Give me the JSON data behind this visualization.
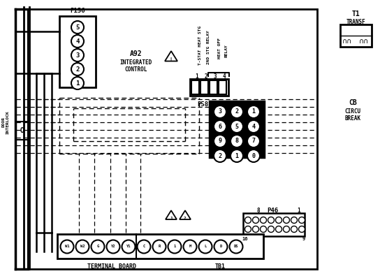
{
  "bg_color": "#ffffff",
  "lc": "#000000",
  "figsize": [
    5.54,
    3.95
  ],
  "dpi": 100,
  "p156_label": "P156",
  "p156_pins": [
    "5",
    "4",
    "3",
    "2",
    "1"
  ],
  "a92_lines": [
    "A92",
    "INTEGRATED",
    "CONTROL"
  ],
  "relay_labels": [
    "T-STAT HEAT STG",
    "2ND STG RELAY",
    "HEAT OFF",
    "RELAY"
  ],
  "relay_pins": [
    "1",
    "2",
    "3",
    "4"
  ],
  "p58_label": "P58",
  "p58_grid": [
    [
      "3",
      "2",
      "1"
    ],
    [
      "6",
      "5",
      "4"
    ],
    [
      "9",
      "8",
      "7"
    ],
    [
      "2",
      "1",
      "0"
    ]
  ],
  "p46_label": "P46",
  "p46_nums": [
    "8",
    "1",
    "16",
    "9"
  ],
  "tb_labels": [
    "W1",
    "W2",
    "G",
    "Y2",
    "Y1",
    "C",
    "R",
    "1",
    "M",
    "L",
    "D",
    "DS"
  ],
  "tb_header": [
    "TERMINAL BOARD",
    "TB1"
  ],
  "t1_lines": [
    "T1",
    "TRANSF"
  ],
  "cb_lines": [
    "CB",
    "CIRCU",
    "BREAK"
  ],
  "door_label": "DOOR\nINTERLOCK"
}
